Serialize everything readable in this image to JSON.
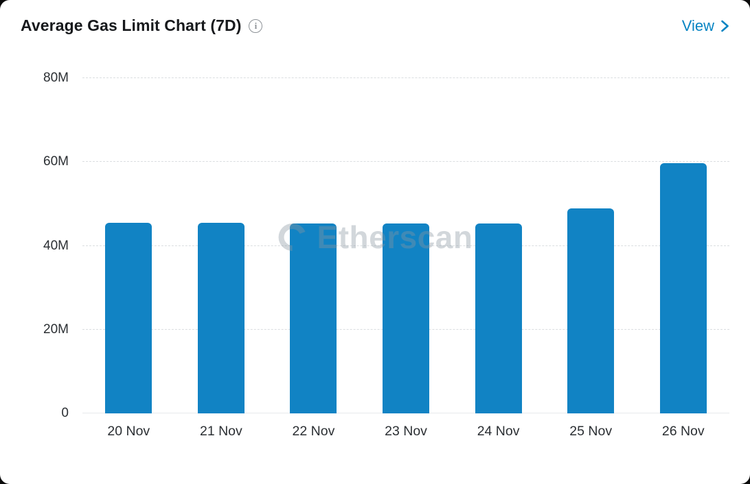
{
  "header": {
    "title": "Average Gas Limit Chart (7D)",
    "info_icon": "info-icon",
    "view_label": "View"
  },
  "chart_data": {
    "type": "bar",
    "title": "Average Gas Limit Chart (7D)",
    "categories": [
      "20 Nov",
      "21 Nov",
      "22 Nov",
      "23 Nov",
      "24 Nov",
      "25 Nov",
      "26 Nov"
    ],
    "values": [
      45.5,
      45.5,
      45.4,
      45.4,
      45.4,
      48.9,
      59.7
    ],
    "unit": "M",
    "xlabel": "",
    "ylabel": "",
    "ylim": [
      0,
      80
    ],
    "yticks": [
      {
        "label": "0",
        "value": 0
      },
      {
        "label": "20M",
        "value": 20
      },
      {
        "label": "40M",
        "value": 40
      },
      {
        "label": "60M",
        "value": 60
      },
      {
        "label": "80M",
        "value": 80
      }
    ],
    "grid": "horizontal-dashed",
    "legend": "none",
    "bar_color": "#1183c4",
    "watermark": "Etherscan"
  },
  "colors": {
    "accent_blue": "#0784c3",
    "bar_blue": "#1183c4",
    "grid_gray": "#dadde0",
    "title_text": "#17191c",
    "axis_text": "#2b2f33",
    "watermark_gray": "#8b97a1"
  }
}
